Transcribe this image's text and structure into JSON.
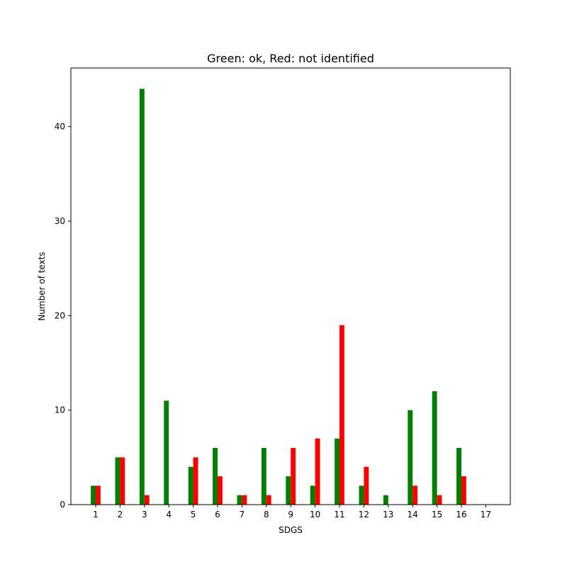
{
  "chart_data": {
    "type": "bar",
    "title": "Green: ok, Red: not identified",
    "xlabel": "SDGS",
    "ylabel": "Number of texts",
    "categories": [
      "1",
      "2",
      "3",
      "4",
      "5",
      "6",
      "7",
      "8",
      "9",
      "10",
      "11",
      "12",
      "13",
      "14",
      "15",
      "16",
      "17"
    ],
    "series": [
      {
        "color": "#008000",
        "values": [
          2,
          5,
          44,
          11,
          4,
          6,
          1,
          6,
          3,
          2,
          7,
          2,
          1,
          10,
          12,
          6,
          0
        ]
      },
      {
        "color": "#ff0000",
        "values": [
          2,
          5,
          1,
          0,
          5,
          3,
          1,
          1,
          6,
          7,
          19,
          4,
          0,
          2,
          1,
          3,
          0
        ]
      }
    ],
    "ylim": [
      0,
      46.2
    ],
    "yticks": [
      0,
      10,
      20,
      30,
      40
    ],
    "grid": false,
    "legend": "none"
  }
}
